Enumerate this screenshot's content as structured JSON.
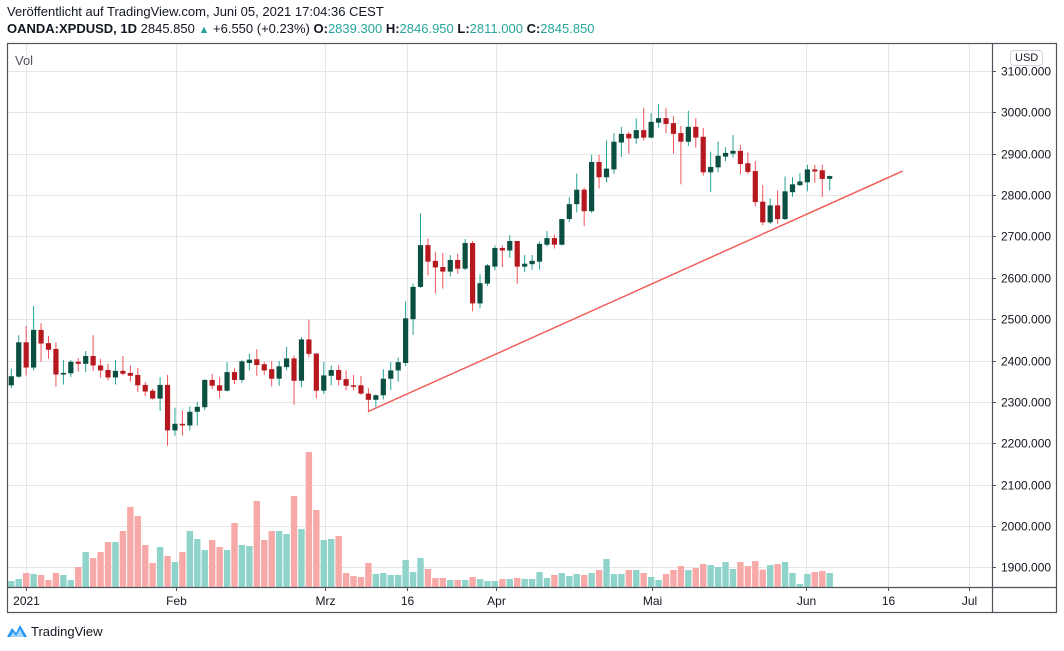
{
  "header": {
    "published": "Veröffentlicht auf TradingView.com, Juni 05, 2021 17:04:36 CEST",
    "symbol": "OANDA:XPDUSD, 1D",
    "last": "2845.850",
    "change": "+6.550 (+0.23%)",
    "o_label": "O:",
    "o": "2839.300",
    "h_label": "H:",
    "h": "2846.950",
    "l_label": "L:",
    "l": "2811.000",
    "c_label": "C:",
    "c": "2845.850"
  },
  "pane": {
    "volume_label": "Vol",
    "currency": "USD"
  },
  "footer": {
    "brand": "TradingView"
  },
  "colors": {
    "up_body": "#0b4f41",
    "up_wick": "#22a393",
    "down_body": "#b5191f",
    "down_wick": "#f0525a",
    "up_vol": "#8fd3ca",
    "down_vol": "#f7a9a7",
    "trendline": "#f0605a",
    "grid": "#e6e6e6"
  },
  "chart_data": {
    "type": "candlestick",
    "title": "OANDA:XPDUSD, 1D",
    "ylabel": "USD",
    "ylim": [
      1900,
      3100
    ],
    "y_ticks": [
      "3100.000",
      "3000.000",
      "2900.000",
      "2800.000",
      "2700.000",
      "2600.000",
      "2500.000",
      "2400.000",
      "2300.000",
      "2200.000",
      "2100.000",
      "2000.000",
      "1900.000"
    ],
    "y_tick_values": [
      3100,
      3000,
      2900,
      2800,
      2700,
      2600,
      2500,
      2400,
      2300,
      2200,
      2100,
      2000,
      1900
    ],
    "x_ticks": [
      {
        "label": "2021",
        "index": 2
      },
      {
        "label": "Feb",
        "index": 22.1
      },
      {
        "label": "Mrz",
        "index": 42.1
      },
      {
        "label": "16",
        "index": 53.2
      },
      {
        "label": "Apr",
        "index": 65.1
      },
      {
        "label": "Mai",
        "index": 86.1
      },
      {
        "label": "Jun",
        "index": 106.8
      },
      {
        "label": "16",
        "index": 117.8
      },
      {
        "label": "Jul",
        "index": 128.7
      }
    ],
    "x_range": [
      0,
      131.8
    ],
    "grid": true,
    "ohlc": [
      [
        2340,
        2380,
        2333,
        2362
      ],
      [
        2361,
        2461,
        2358,
        2444
      ],
      [
        2444,
        2484,
        2364,
        2383
      ],
      [
        2383,
        2532,
        2376,
        2474
      ],
      [
        2474,
        2490,
        2397,
        2441
      ],
      [
        2442,
        2460,
        2404,
        2426
      ],
      [
        2428,
        2444,
        2337,
        2366
      ],
      [
        2366,
        2401,
        2342,
        2370
      ],
      [
        2369,
        2401,
        2360,
        2397
      ],
      [
        2397,
        2406,
        2373,
        2392
      ],
      [
        2392,
        2423,
        2372,
        2411
      ],
      [
        2411,
        2461,
        2375,
        2388
      ],
      [
        2388,
        2404,
        2359,
        2376
      ],
      [
        2377,
        2392,
        2352,
        2359
      ],
      [
        2359,
        2401,
        2342,
        2375
      ],
      [
        2375,
        2411,
        2364,
        2368
      ],
      [
        2370,
        2388,
        2349,
        2363
      ],
      [
        2365,
        2382,
        2324,
        2340
      ],
      [
        2341,
        2348,
        2314,
        2325
      ],
      [
        2327,
        2332,
        2306,
        2308
      ],
      [
        2308,
        2360,
        2278,
        2341
      ],
      [
        2341,
        2365,
        2194,
        2231
      ],
      [
        2231,
        2286,
        2218,
        2247
      ],
      [
        2247,
        2279,
        2219,
        2243
      ],
      [
        2243,
        2289,
        2231,
        2276
      ],
      [
        2276,
        2300,
        2243,
        2288
      ],
      [
        2287,
        2355,
        2280,
        2353
      ],
      [
        2353,
        2368,
        2331,
        2339
      ],
      [
        2340,
        2360,
        2309,
        2327
      ],
      [
        2327,
        2396,
        2325,
        2372
      ],
      [
        2372,
        2381,
        2343,
        2353
      ],
      [
        2353,
        2401,
        2346,
        2398
      ],
      [
        2394,
        2417,
        2376,
        2402
      ],
      [
        2403,
        2427,
        2363,
        2389
      ],
      [
        2391,
        2397,
        2365,
        2376
      ],
      [
        2379,
        2399,
        2337,
        2356
      ],
      [
        2356,
        2399,
        2339,
        2386
      ],
      [
        2384,
        2433,
        2376,
        2405
      ],
      [
        2405,
        2412,
        2293,
        2351
      ],
      [
        2351,
        2457,
        2336,
        2451
      ],
      [
        2451,
        2499,
        2408,
        2416
      ],
      [
        2417,
        2417,
        2308,
        2327
      ],
      [
        2327,
        2396,
        2319,
        2364
      ],
      [
        2363,
        2388,
        2340,
        2377
      ],
      [
        2377,
        2389,
        2340,
        2353
      ],
      [
        2355,
        2376,
        2328,
        2339
      ],
      [
        2340,
        2365,
        2328,
        2339
      ],
      [
        2340,
        2363,
        2317,
        2320
      ],
      [
        2320,
        2333,
        2275,
        2305
      ],
      [
        2305,
        2318,
        2288,
        2316
      ],
      [
        2316,
        2379,
        2306,
        2356
      ],
      [
        2356,
        2396,
        2329,
        2376
      ],
      [
        2376,
        2407,
        2349,
        2396
      ],
      [
        2394,
        2543,
        2386,
        2502
      ],
      [
        2500,
        2586,
        2462,
        2578
      ],
      [
        2578,
        2756,
        2575,
        2679
      ],
      [
        2679,
        2695,
        2606,
        2639
      ],
      [
        2641,
        2663,
        2562,
        2625
      ],
      [
        2626,
        2660,
        2574,
        2615
      ],
      [
        2615,
        2655,
        2603,
        2643
      ],
      [
        2643,
        2658,
        2610,
        2622
      ],
      [
        2622,
        2694,
        2618,
        2684
      ],
      [
        2684,
        2689,
        2519,
        2538
      ],
      [
        2538,
        2609,
        2526,
        2587
      ],
      [
        2586,
        2633,
        2580,
        2630
      ],
      [
        2627,
        2678,
        2618,
        2672
      ],
      [
        2672,
        2678,
        2626,
        2666
      ],
      [
        2666,
        2703,
        2649,
        2689
      ],
      [
        2689,
        2689,
        2586,
        2627
      ],
      [
        2627,
        2655,
        2614,
        2634
      ],
      [
        2633,
        2655,
        2620,
        2641
      ],
      [
        2639,
        2688,
        2620,
        2682
      ],
      [
        2680,
        2713,
        2676,
        2696
      ],
      [
        2696,
        2705,
        2671,
        2680
      ],
      [
        2680,
        2742,
        2678,
        2742
      ],
      [
        2742,
        2795,
        2734,
        2778
      ],
      [
        2778,
        2852,
        2758,
        2813
      ],
      [
        2813,
        2818,
        2725,
        2761
      ],
      [
        2761,
        2897,
        2757,
        2880
      ],
      [
        2880,
        2897,
        2816,
        2843
      ],
      [
        2843,
        2932,
        2831,
        2864
      ],
      [
        2862,
        2950,
        2852,
        2929
      ],
      [
        2927,
        2965,
        2892,
        2948
      ],
      [
        2948,
        2953,
        2900,
        2937
      ],
      [
        2937,
        2985,
        2924,
        2957
      ],
      [
        2957,
        3011,
        2932,
        2939
      ],
      [
        2939,
        2998,
        2937,
        2977
      ],
      [
        2975,
        3020,
        2963,
        2986
      ],
      [
        2986,
        3010,
        2950,
        2972
      ],
      [
        2974,
        2991,
        2900,
        2948
      ],
      [
        2950,
        2967,
        2826,
        2929
      ],
      [
        2929,
        3004,
        2919,
        2965
      ],
      [
        2965,
        2986,
        2915,
        2939
      ],
      [
        2941,
        2962,
        2847,
        2855
      ],
      [
        2855,
        2905,
        2807,
        2868
      ],
      [
        2867,
        2929,
        2855,
        2895
      ],
      [
        2893,
        2916,
        2882,
        2902
      ],
      [
        2900,
        2945,
        2891,
        2907
      ],
      [
        2907,
        2921,
        2851,
        2875
      ],
      [
        2877,
        2903,
        2851,
        2856
      ],
      [
        2858,
        2882,
        2772,
        2783
      ],
      [
        2784,
        2824,
        2727,
        2734
      ],
      [
        2734,
        2792,
        2730,
        2775
      ],
      [
        2775,
        2811,
        2730,
        2742
      ],
      [
        2742,
        2845,
        2740,
        2809
      ],
      [
        2807,
        2843,
        2796,
        2826
      ],
      [
        2824,
        2853,
        2822,
        2833
      ],
      [
        2831,
        2873,
        2809,
        2862
      ],
      [
        2862,
        2873,
        2830,
        2857
      ],
      [
        2860,
        2873,
        2795,
        2839
      ],
      [
        2839.3,
        2846.95,
        2811,
        2845.85
      ]
    ],
    "volume_relative": [
      18,
      24,
      42,
      39,
      36,
      21,
      42,
      36,
      21,
      60,
      105,
      87,
      105,
      135,
      135,
      168,
      240,
      213,
      126,
      72,
      120,
      93,
      75,
      105,
      168,
      144,
      111,
      141,
      120,
      111,
      192,
      126,
      123,
      258,
      141,
      168,
      168,
      159,
      273,
      174,
      405,
      231,
      141,
      144,
      153,
      42,
      33,
      30,
      72,
      39,
      42,
      36,
      36,
      81,
      45,
      87,
      54,
      27,
      27,
      21,
      21,
      21,
      30,
      24,
      18,
      18,
      24,
      24,
      27,
      24,
      24,
      45,
      27,
      36,
      42,
      33,
      39,
      36,
      42,
      51,
      84,
      39,
      39,
      51,
      51,
      42,
      30,
      21,
      39,
      51,
      63,
      51,
      57,
      69,
      66,
      60,
      75,
      54,
      75,
      63,
      78,
      52,
      66,
      69,
      75,
      42,
      9,
      39,
      45,
      48,
      42
    ],
    "trendline": {
      "from": {
        "index": 48,
        "price": 2277
      },
      "to": {
        "index": 119.8,
        "price": 2858
      }
    }
  }
}
